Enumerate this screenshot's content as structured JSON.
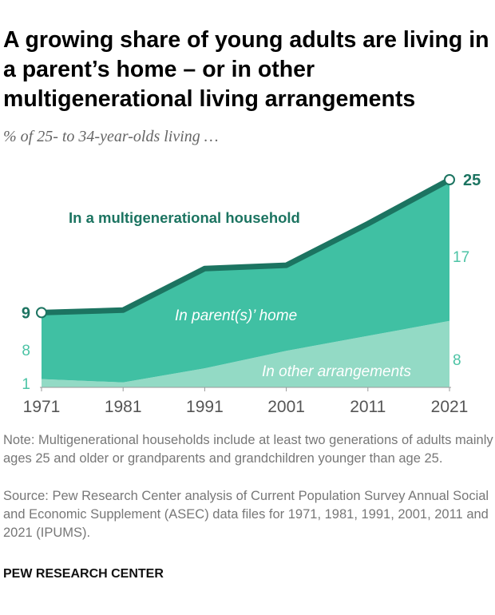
{
  "title": "A growing share of young adults are living in a parent’s home – or in other multigenerational living arrangements",
  "subtitle": "% of 25- to 34-year-olds living …",
  "note": "Note: Multigenerational households include at least two generations of adults mainly ages 25 and older or grandparents and grandchildren younger than age 25.",
  "source": "Source: Pew Research Center analysis of Current Population Survey Annual Social and Economic Supplement (ASEC) data files for 1971, 1981, 1991, 2001, 2011 and 2021 (IPUMS).",
  "brand": "PEW RESEARCH CENTER",
  "chart_data": {
    "type": "area",
    "stacked": true,
    "x": [
      1971,
      1981,
      1991,
      2001,
      2011,
      2021
    ],
    "x_tick_labels": [
      "1971",
      "1981",
      "1991",
      "2001",
      "2011",
      "2021"
    ],
    "ylim": [
      0,
      25
    ],
    "series": [
      {
        "name": "In other arrangements",
        "values": [
          1,
          0.6,
          2.3,
          4.4,
          6.2,
          8
        ],
        "color": "#93dac5"
      },
      {
        "name": "In parent(s)’ home",
        "values": [
          8,
          8.7,
          12.0,
          10.3,
          13.5,
          17
        ],
        "color": "#40c0a3"
      }
    ],
    "total": {
      "name": "In a multigenerational household",
      "values": [
        9,
        9.3,
        14.3,
        14.7,
        19.7,
        25
      ],
      "color": "#1c7461"
    },
    "data_labels": {
      "total_start": "9",
      "total_end": "25",
      "parent_start": "8",
      "parent_end": "17",
      "other_start": "1",
      "other_end": "8"
    },
    "grid": false
  }
}
